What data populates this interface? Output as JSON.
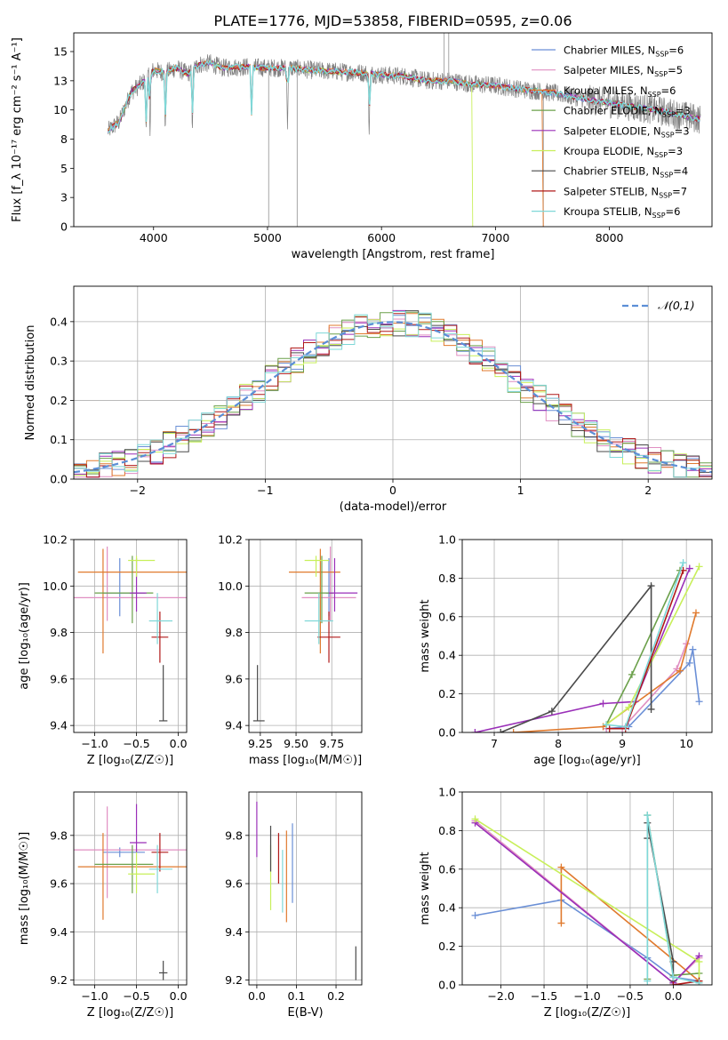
{
  "figure": {
    "title": "PLATE=1776, MJD=53858, FIBERID=0595, z=0.06"
  },
  "models": [
    {
      "name": "Chabrier MILES",
      "nssp": "6",
      "color": "#6a8fd6"
    },
    {
      "name": "Salpeter MILES",
      "nssp": "5",
      "color": "#e08fc2"
    },
    {
      "name": "Kroupa MILES",
      "nssp": "6",
      "color": "#e07a2e"
    },
    {
      "name": "Chabrier ELODIE",
      "nssp": "3",
      "color": "#6ba04a"
    },
    {
      "name": "Salpeter ELODIE",
      "nssp": "3",
      "color": "#9a2fb8"
    },
    {
      "name": "Kroupa ELODIE",
      "nssp": "3",
      "color": "#c8ef5a"
    },
    {
      "name": "Chabrier STELIB",
      "nssp": "4",
      "color": "#4a4a4a"
    },
    {
      "name": "Salpeter STELIB",
      "nssp": "7",
      "color": "#b01818"
    },
    {
      "name": "Kroupa STELIB",
      "nssp": "6",
      "color": "#7fd8d8"
    }
  ],
  "chart_data": [
    {
      "id": "spectrum",
      "type": "line",
      "xlabel": "wavelength [Angstrom, rest frame]",
      "ylabel": "Flux [f_λ 10⁻¹⁷ erg cm⁻² s⁻¹ A⁻¹]",
      "xlim": [
        3300,
        8900
      ],
      "ylim": [
        0,
        16.6
      ],
      "xticks": [
        4000,
        5000,
        6000,
        7000,
        8000
      ],
      "yticks": [
        0.0,
        2.5,
        5.0,
        7.5,
        10.0,
        12.5,
        15.0
      ],
      "x": [
        3600,
        3700,
        3800,
        3900,
        4000,
        4100,
        4200,
        4300,
        4400,
        4500,
        4600,
        4800,
        5000,
        5200,
        5400,
        5600,
        5800,
        6000,
        6200,
        6400,
        6600,
        6800,
        7000,
        7200,
        7400,
        7600,
        7800,
        8000,
        8200,
        8400,
        8600,
        8800
      ],
      "y": [
        8.2,
        9.0,
        11.5,
        12.3,
        13.4,
        13.2,
        13.6,
        13.1,
        13.9,
        14.0,
        13.6,
        13.7,
        13.6,
        13.6,
        13.4,
        13.3,
        13.2,
        13.0,
        12.9,
        12.5,
        12.5,
        12.2,
        12.1,
        11.8,
        11.6,
        11.3,
        10.9,
        10.6,
        10.3,
        10.0,
        9.6,
        9.2
      ],
      "absorption_lines_x": [
        3934,
        3969,
        4102,
        4340,
        4861,
        5175,
        5892
      ],
      "legend_position": "upper right",
      "grid": false
    },
    {
      "id": "residuals",
      "type": "bar",
      "xlabel": "(data-model)/error",
      "ylabel": "Normed distribution",
      "xlim": [
        -2.5,
        2.5
      ],
      "ylim": [
        0,
        0.49
      ],
      "xticks": [
        -2,
        -1,
        0,
        1,
        2
      ],
      "yticks": [
        0.0,
        0.1,
        0.2,
        0.3,
        0.4
      ],
      "bin_edges": [
        -2.5,
        -2.4,
        -2.3,
        -2.2,
        -2.1,
        -2.0,
        -1.9,
        -1.8,
        -1.7,
        -1.6,
        -1.5,
        -1.4,
        -1.3,
        -1.2,
        -1.1,
        -1.0,
        -0.9,
        -0.8,
        -0.7,
        -0.6,
        -0.5,
        -0.4,
        -0.3,
        -0.2,
        -0.1,
        0.0,
        0.1,
        0.2,
        0.3,
        0.4,
        0.5,
        0.6,
        0.7,
        0.8,
        0.9,
        1.0,
        1.1,
        1.2,
        1.3,
        1.4,
        1.5,
        1.6,
        1.7,
        1.8,
        1.9,
        2.0,
        2.1,
        2.2,
        2.3,
        2.4,
        2.5
      ],
      "reference": {
        "name": "𝒩(0,1)",
        "type": "gaussian",
        "mean": 0,
        "sigma": 1,
        "color": "#5b8ed6"
      },
      "legend_position": "upper right",
      "grid": true
    },
    {
      "id": "age-vs-Z",
      "type": "scatter",
      "xlabel": "Z [log₁₀(Z/Z☉)]",
      "ylabel": "age  [log₁₀(age/yr)]",
      "xlim": [
        -1.25,
        0.1
      ],
      "ylim": [
        9.37,
        10.2
      ],
      "xticks": [
        -1.0,
        -0.5,
        0.0
      ],
      "yticks": [
        9.4,
        9.6,
        9.8,
        10.0,
        10.2
      ],
      "points": [
        {
          "model": 0,
          "x": -0.7,
          "y": 9.97,
          "xerr": [
            0.2,
            0.3
          ],
          "yerr": [
            0.1,
            0.15
          ]
        },
        {
          "model": 1,
          "x": -0.85,
          "y": 9.95,
          "xerr": [
            0.4,
            0.95
          ],
          "yerr": [
            0.1,
            0.22
          ]
        },
        {
          "model": 2,
          "x": -0.9,
          "y": 10.06,
          "xerr": [
            0.3,
            1.1
          ],
          "yerr": [
            0.35,
            0.1
          ]
        },
        {
          "model": 3,
          "x": -0.55,
          "y": 9.97,
          "xerr": [
            0.45,
            0.25
          ],
          "yerr": [
            0.13,
            0.16
          ]
        },
        {
          "model": 4,
          "x": -0.5,
          "y": 9.97,
          "xerr": [
            0.08,
            0.12
          ],
          "yerr": [
            0.08,
            0.15
          ]
        },
        {
          "model": 5,
          "x": -0.5,
          "y": 10.11,
          "xerr": [
            0.1,
            0.22
          ],
          "yerr": [
            0.07,
            0.02
          ]
        },
        {
          "model": 6,
          "x": -0.18,
          "y": 9.42,
          "xerr": [
            0.05,
            0.05
          ],
          "yerr": [
            0.0,
            0.24
          ]
        },
        {
          "model": 7,
          "x": -0.22,
          "y": 9.78,
          "xerr": [
            0.1,
            0.1
          ],
          "yerr": [
            0.11,
            0.11
          ]
        },
        {
          "model": 8,
          "x": -0.25,
          "y": 9.85,
          "xerr": [
            0.1,
            0.18
          ],
          "yerr": [
            0.1,
            0.12
          ]
        }
      ],
      "grid": true
    },
    {
      "id": "age-vs-mass",
      "type": "scatter",
      "xlabel": "mass [log₁₀(M/M☉)]",
      "ylabel": "",
      "xlim": [
        9.17,
        9.96
      ],
      "ylim": [
        9.37,
        10.2
      ],
      "xticks": [
        9.25,
        9.5,
        9.75
      ],
      "yticks": [
        9.4,
        9.6,
        9.8,
        10.0,
        10.2
      ],
      "points": [
        {
          "model": 0,
          "x": 9.73,
          "y": 9.97,
          "xerr": [
            0.02,
            0.02
          ],
          "yerr": [
            0.1,
            0.15
          ]
        },
        {
          "model": 1,
          "x": 9.74,
          "y": 9.95,
          "xerr": [
            0.2,
            0.18
          ],
          "yerr": [
            0.1,
            0.22
          ]
        },
        {
          "model": 2,
          "x": 9.67,
          "y": 10.06,
          "xerr": [
            0.22,
            0.14
          ],
          "yerr": [
            0.35,
            0.1
          ]
        },
        {
          "model": 3,
          "x": 9.68,
          "y": 9.97,
          "xerr": [
            0.12,
            0.08
          ],
          "yerr": [
            0.13,
            0.16
          ]
        },
        {
          "model": 4,
          "x": 9.77,
          "y": 9.97,
          "xerr": [
            0.04,
            0.16
          ],
          "yerr": [
            0.08,
            0.15
          ]
        },
        {
          "model": 5,
          "x": 9.64,
          "y": 10.11,
          "xerr": [
            0.08,
            0.09
          ],
          "yerr": [
            0.07,
            0.02
          ]
        },
        {
          "model": 6,
          "x": 9.23,
          "y": 9.42,
          "xerr": [
            0.03,
            0.05
          ],
          "yerr": [
            0.0,
            0.24
          ]
        },
        {
          "model": 7,
          "x": 9.73,
          "y": 9.78,
          "xerr": [
            0.08,
            0.08
          ],
          "yerr": [
            0.11,
            0.11
          ]
        },
        {
          "model": 8,
          "x": 9.66,
          "y": 9.85,
          "xerr": [
            0.1,
            0.1
          ],
          "yerr": [
            0.1,
            0.12
          ]
        }
      ],
      "grid": true
    },
    {
      "id": "weight-vs-age",
      "type": "line",
      "xlabel": "age  [log₁₀(age/yr)]",
      "ylabel": "mass weight",
      "xlim": [
        6.5,
        10.4
      ],
      "ylim": [
        0,
        1
      ],
      "xticks": [
        7,
        8,
        9,
        10
      ],
      "yticks": [
        0.0,
        0.2,
        0.4,
        0.6,
        0.8,
        1.0
      ],
      "series": [
        {
          "model": 0,
          "x": [
            8.75,
            9.1,
            10.05,
            10.1,
            10.2
          ],
          "y": [
            0.02,
            0.03,
            0.36,
            0.43,
            0.16
          ]
        },
        {
          "model": 1,
          "x": [
            8.75,
            9.0,
            9.85,
            10.0
          ],
          "y": [
            0.02,
            0.02,
            0.33,
            0.46
          ]
        },
        {
          "model": 2,
          "x": [
            7.3,
            8.7,
            9.9,
            10.15
          ],
          "y": [
            0.0,
            0.03,
            0.32,
            0.62
          ]
        },
        {
          "model": 3,
          "x": [
            8.75,
            9.15,
            9.9
          ],
          "y": [
            0.04,
            0.3,
            0.84
          ]
        },
        {
          "model": 4,
          "x": [
            6.7,
            8.7,
            9.2,
            10.05
          ],
          "y": [
            0.0,
            0.15,
            0.16,
            0.85
          ]
        },
        {
          "model": 5,
          "x": [
            8.75,
            9.1,
            10.2
          ],
          "y": [
            0.04,
            0.13,
            0.86
          ]
        },
        {
          "model": 6,
          "x": [
            7.1,
            7.9,
            9.45,
            9.45
          ],
          "y": [
            0.0,
            0.11,
            0.76,
            0.12
          ]
        },
        {
          "model": 7,
          "x": [
            8.8,
            9.05,
            9.95
          ],
          "y": [
            0.02,
            0.02,
            0.84
          ]
        },
        {
          "model": 8,
          "x": [
            8.75,
            9.05,
            9.95
          ],
          "y": [
            0.04,
            0.03,
            0.88
          ]
        }
      ],
      "grid": true
    },
    {
      "id": "mass-vs-Z",
      "type": "scatter",
      "xlabel": "Z [log₁₀(Z/Z☉)]",
      "ylabel": "mass [log₁₀(M/M☉)]",
      "xlim": [
        -1.25,
        0.1
      ],
      "ylim": [
        9.18,
        9.98
      ],
      "xticks": [
        -1.0,
        -0.5,
        0.0
      ],
      "yticks": [
        9.2,
        9.4,
        9.6,
        9.8
      ],
      "points": [
        {
          "model": 0,
          "x": -0.7,
          "y": 9.73,
          "xerr": [
            0.2,
            0.3
          ],
          "yerr": [
            0.02,
            0.02
          ]
        },
        {
          "model": 1,
          "x": -0.85,
          "y": 9.74,
          "xerr": [
            0.4,
            0.95
          ],
          "yerr": [
            0.2,
            0.18
          ]
        },
        {
          "model": 2,
          "x": -0.9,
          "y": 9.67,
          "xerr": [
            0.3,
            1.1
          ],
          "yerr": [
            0.22,
            0.14
          ]
        },
        {
          "model": 3,
          "x": -0.55,
          "y": 9.68,
          "xerr": [
            0.45,
            0.25
          ],
          "yerr": [
            0.12,
            0.08
          ]
        },
        {
          "model": 4,
          "x": -0.5,
          "y": 9.77,
          "xerr": [
            0.08,
            0.12
          ],
          "yerr": [
            0.04,
            0.16
          ]
        },
        {
          "model": 5,
          "x": -0.5,
          "y": 9.64,
          "xerr": [
            0.1,
            0.22
          ],
          "yerr": [
            0.08,
            0.09
          ]
        },
        {
          "model": 6,
          "x": -0.18,
          "y": 9.23,
          "xerr": [
            0.05,
            0.05
          ],
          "yerr": [
            0.03,
            0.05
          ]
        },
        {
          "model": 7,
          "x": -0.22,
          "y": 9.73,
          "xerr": [
            0.1,
            0.1
          ],
          "yerr": [
            0.08,
            0.08
          ]
        },
        {
          "model": 8,
          "x": -0.25,
          "y": 9.66,
          "xerr": [
            0.1,
            0.18
          ],
          "yerr": [
            0.1,
            0.1
          ]
        }
      ],
      "grid": true
    },
    {
      "id": "mass-vs-ebv",
      "type": "scatter",
      "xlabel": "E(B-V)",
      "ylabel": "",
      "xlim": [
        -0.02,
        0.265
      ],
      "ylim": [
        9.18,
        9.98
      ],
      "xticks": [
        0.0,
        0.1,
        0.2
      ],
      "yticks": [
        9.2,
        9.4,
        9.6,
        9.8
      ],
      "points": [
        {
          "model": 4,
          "x": 0.0,
          "y": 9.83,
          "xerr": [
            0,
            0
          ],
          "yerr": [
            0.12,
            0.11
          ]
        },
        {
          "model": 5,
          "x": 0.035,
          "y": 9.66,
          "xerr": [
            0,
            0
          ],
          "yerr": [
            0.17,
            0.1
          ]
        },
        {
          "model": 6,
          "x": 0.035,
          "y": 9.75,
          "xerr": [
            0,
            0
          ],
          "yerr": [
            0.1,
            0.09
          ]
        },
        {
          "model": 7,
          "x": 0.055,
          "y": 9.71,
          "xerr": [
            0,
            0
          ],
          "yerr": [
            0.11,
            0.1
          ]
        },
        {
          "model": 8,
          "x": 0.065,
          "y": 9.6,
          "xerr": [
            0,
            0
          ],
          "yerr": [
            0.12,
            0.14
          ]
        },
        {
          "model": 2,
          "x": 0.075,
          "y": 9.67,
          "xerr": [
            0,
            0
          ],
          "yerr": [
            0.23,
            0.15
          ]
        },
        {
          "model": 0,
          "x": 0.09,
          "y": 9.7,
          "xerr": [
            0,
            0
          ],
          "yerr": [
            0.18,
            0.15
          ]
        },
        {
          "model": 6,
          "x": 0.25,
          "y": 9.27,
          "xerr": [
            0,
            0
          ],
          "yerr": [
            0.07,
            0.07
          ]
        }
      ],
      "grid": true
    },
    {
      "id": "weight-vs-Z",
      "type": "line",
      "xlabel": "Z [log₁₀(Z/Z☉)]",
      "ylabel": "mass weight",
      "xlim": [
        -2.45,
        0.45
      ],
      "ylim": [
        0,
        1
      ],
      "xticks": [
        -2.0,
        -1.5,
        -1.0,
        -0.5,
        0.0
      ],
      "yticks": [
        0.0,
        0.2,
        0.4,
        0.6,
        0.8,
        1.0
      ],
      "series": [
        {
          "model": 0,
          "x": [
            -2.3,
            -1.3,
            -0.3,
            0.0,
            0.3
          ],
          "y": [
            0.36,
            0.44,
            0.14,
            0.04,
            0.02
          ]
        },
        {
          "model": 1,
          "x": [
            -2.3,
            0.0,
            0.3
          ],
          "y": [
            0.85,
            0.01,
            0.14
          ]
        },
        {
          "model": 2,
          "x": [
            -1.3,
            -1.3,
            0.3
          ],
          "y": [
            0.32,
            0.61,
            0.02
          ]
        },
        {
          "model": 3,
          "x": [
            -0.3,
            -0.3,
            0.0,
            0.3
          ],
          "y": [
            0.03,
            0.88,
            0.05,
            0.06
          ]
        },
        {
          "model": 4,
          "x": [
            -2.3,
            0.0,
            0.3
          ],
          "y": [
            0.84,
            0.01,
            0.15
          ]
        },
        {
          "model": 5,
          "x": [
            -2.3,
            0.3,
            0.3
          ],
          "y": [
            0.86,
            0.12,
            0.02
          ]
        },
        {
          "model": 6,
          "x": [
            -0.3,
            -0.3,
            0.0,
            0.0
          ],
          "y": [
            0.76,
            0.84,
            0.12,
            0.02
          ]
        },
        {
          "model": 7,
          "x": [
            0.0,
            0.3
          ],
          "y": [
            0.0,
            0.02
          ]
        },
        {
          "model": 8,
          "x": [
            -0.3,
            -0.3,
            0.0,
            0.3
          ],
          "y": [
            0.02,
            0.88,
            0.04,
            0.01
          ]
        }
      ],
      "grid": true
    }
  ]
}
